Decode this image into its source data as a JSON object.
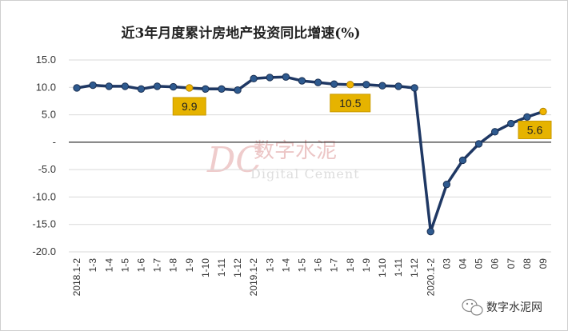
{
  "chart_data": {
    "type": "line",
    "title": "近3年月度累计房地产投资同比增速(%)",
    "categories": [
      "2018.1-2",
      "1-3",
      "1-4",
      "1-5",
      "1-6",
      "1-7",
      "1-8",
      "1-9",
      "1-10",
      "1-11",
      "1-12",
      "2019.1-2",
      "1-3",
      "1-4",
      "1-5",
      "1-6",
      "1-7",
      "1-8",
      "1-9",
      "1-10",
      "1-11",
      "1-12",
      "2020.1-2",
      "03",
      "04",
      "05",
      "06",
      "07",
      "08",
      "09"
    ],
    "values": [
      9.9,
      10.4,
      10.2,
      10.2,
      9.7,
      10.2,
      10.1,
      9.9,
      9.7,
      9.7,
      9.5,
      11.6,
      11.8,
      11.9,
      11.2,
      10.9,
      10.6,
      10.5,
      10.5,
      10.3,
      10.2,
      9.9,
      -16.3,
      -7.7,
      -3.3,
      -0.3,
      1.9,
      3.4,
      4.6,
      5.6
    ],
    "ylim": [
      -20,
      15
    ],
    "yticks": [
      "15.0",
      "10.0",
      "5.0",
      "-",
      "-5.0",
      "-10.0",
      "-15.0",
      "-20.0"
    ],
    "annotations": [
      {
        "index": 7,
        "text": "9.9"
      },
      {
        "index": 17,
        "text": "10.5"
      },
      {
        "index": 29,
        "text": "5.6"
      }
    ],
    "colors": {
      "line": "#1f3864",
      "marker": "#2e5a8f",
      "highlight": "#f0b400",
      "label_bg": "#e6b300"
    },
    "grid": true
  },
  "watermark": {
    "logo": "DC",
    "cn": "数字水泥",
    "en": "Digital Cement"
  },
  "source": {
    "icon": "wechat-icon",
    "text": "数字水泥网"
  }
}
